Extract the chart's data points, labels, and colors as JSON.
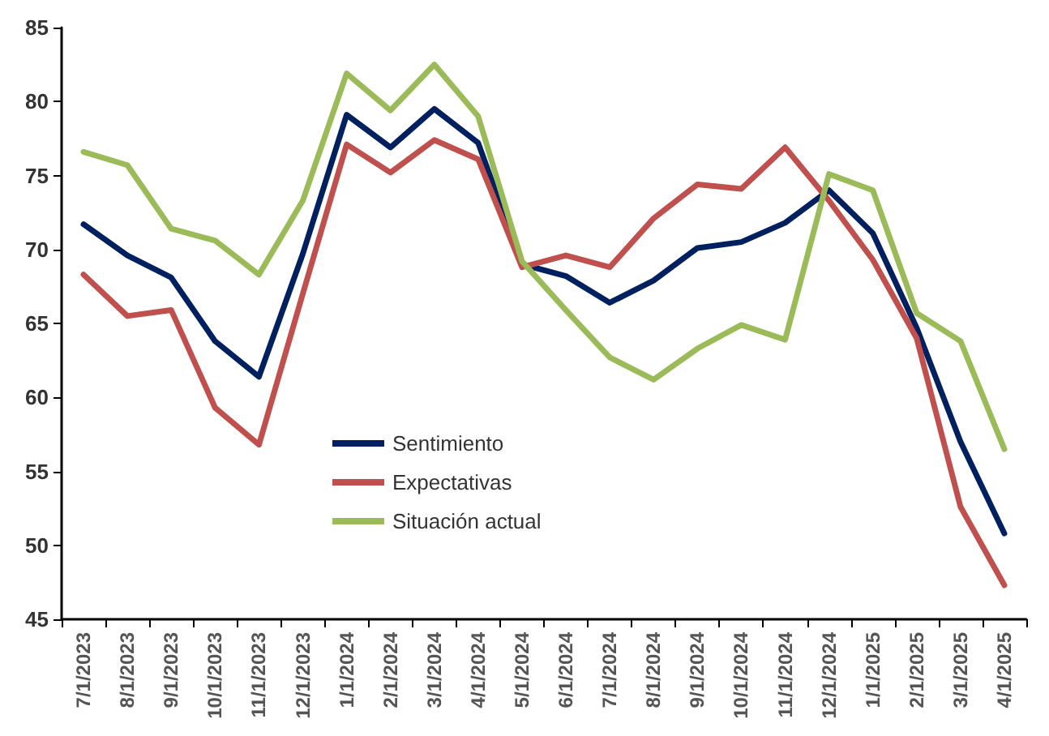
{
  "chart_data": {
    "type": "line",
    "categories": [
      "7/1/2023",
      "8/1/2023",
      "9/1/2023",
      "10/1/2023",
      "11/1/2023",
      "12/1/2023",
      "1/1/2024",
      "2/1/2024",
      "3/1/2024",
      "4/1/2024",
      "5/1/2024",
      "6/1/2024",
      "7/1/2024",
      "8/1/2024",
      "9/1/2024",
      "10/1/2024",
      "11/1/2024",
      "12/1/2024",
      "1/1/2025",
      "2/1/2025",
      "3/1/2025",
      "4/1/2025"
    ],
    "series": [
      {
        "name": "Sentimiento",
        "color": "#002060",
        "values": [
          71.7,
          69.6,
          68.1,
          63.8,
          61.4,
          69.7,
          79.1,
          76.9,
          79.5,
          77.2,
          69.0,
          68.2,
          66.4,
          67.9,
          70.1,
          70.5,
          71.8,
          74.0,
          71.1,
          64.7,
          57.0,
          50.8
        ]
      },
      {
        "name": "Expectativas",
        "color": "#c0504d",
        "values": [
          68.3,
          65.5,
          65.9,
          59.3,
          56.8,
          67.0,
          77.1,
          75.2,
          77.4,
          76.1,
          68.8,
          69.6,
          68.8,
          72.1,
          74.4,
          74.1,
          76.9,
          73.3,
          69.3,
          64.0,
          52.6,
          47.3
        ]
      },
      {
        "name": "Situación actual",
        "color": "#9bbb59",
        "values": [
          76.6,
          75.7,
          71.4,
          70.6,
          68.3,
          73.3,
          81.9,
          79.4,
          82.5,
          79.0,
          69.2,
          65.9,
          62.7,
          61.2,
          63.3,
          64.9,
          63.9,
          75.1,
          74.0,
          65.7,
          63.8,
          56.5
        ]
      }
    ],
    "ylim": [
      45,
      85
    ],
    "yticks": [
      45,
      50,
      55,
      60,
      65,
      70,
      75,
      80,
      85
    ],
    "grid": false,
    "legend": "bottom left",
    "marker": "none",
    "line_style": "solid"
  }
}
